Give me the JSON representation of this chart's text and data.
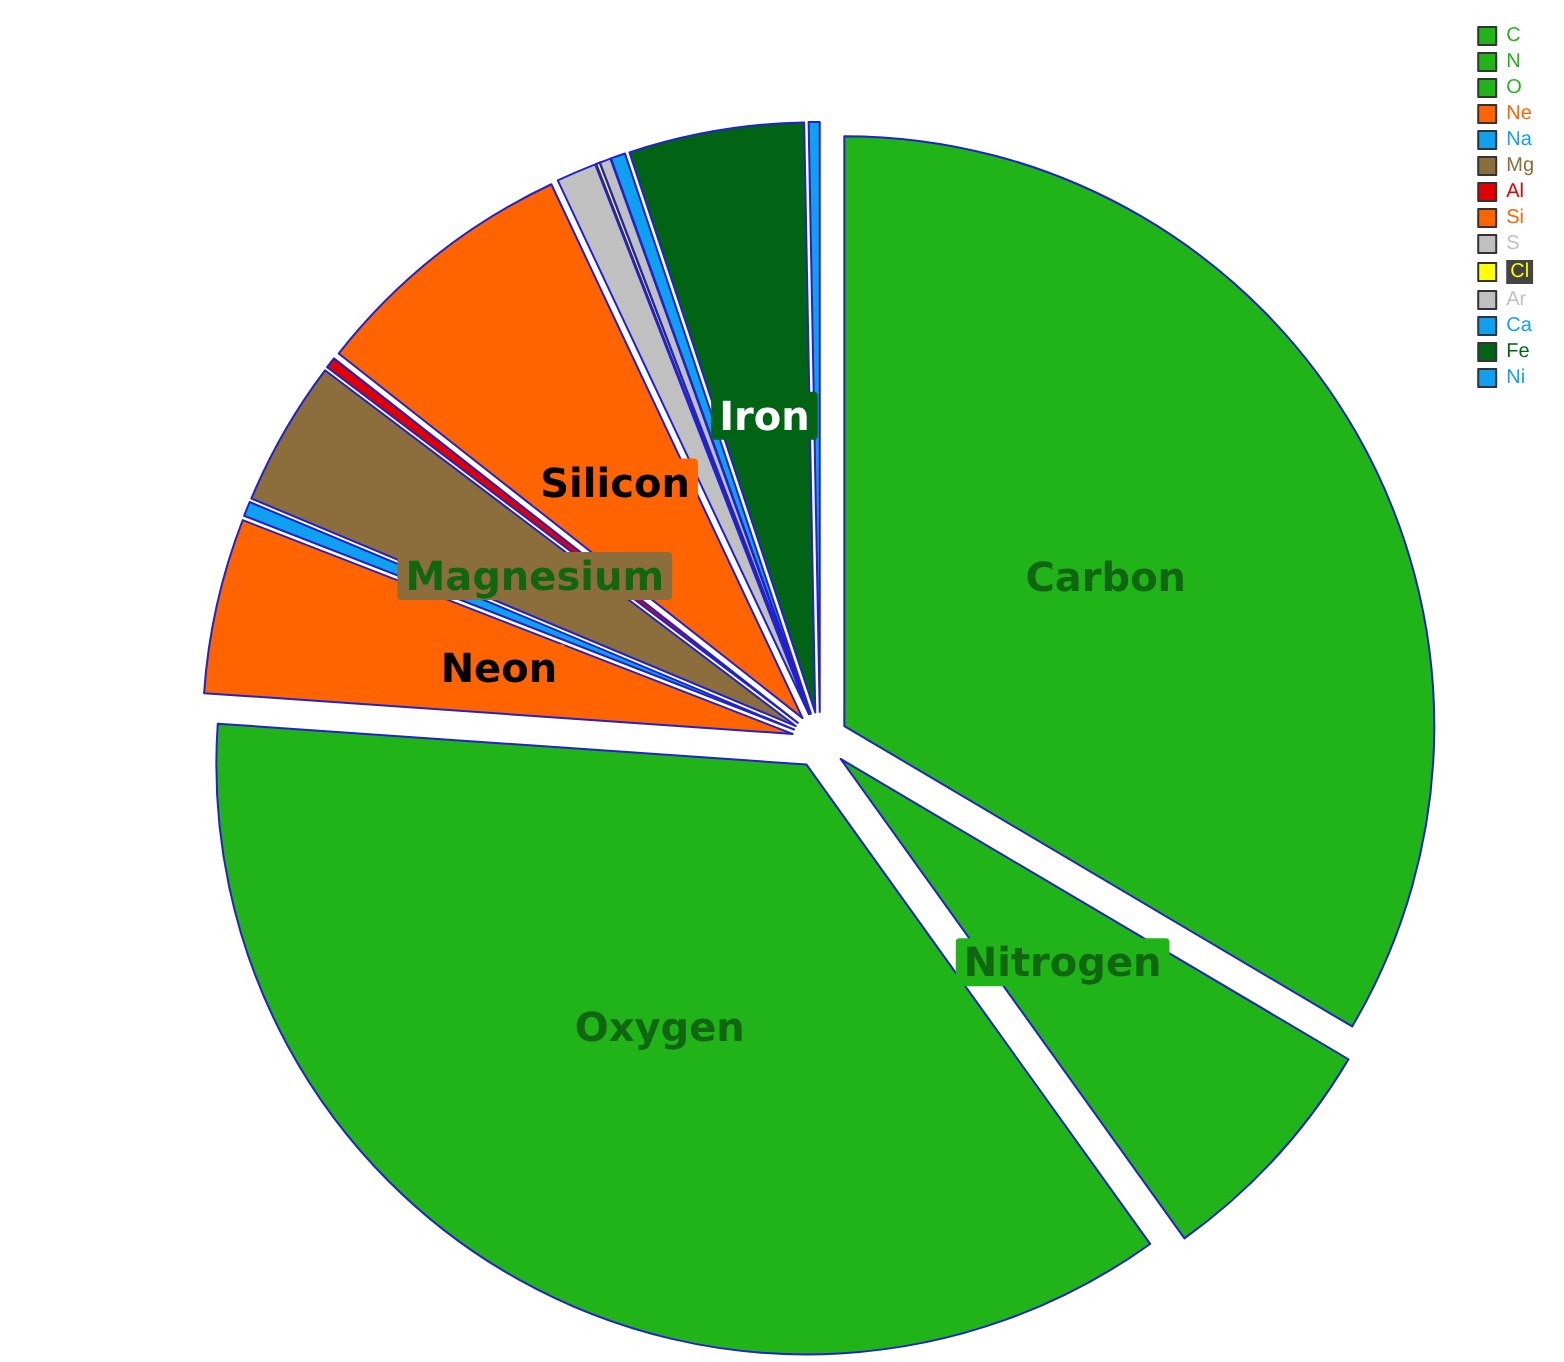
{
  "chart_data": {
    "type": "pie",
    "categories": [
      "C",
      "N",
      "O",
      "Ne",
      "Na",
      "Mg",
      "Al",
      "Si",
      "S",
      "Cl",
      "Ar",
      "Ca",
      "Fe",
      "Ni"
    ],
    "values": [
      33.5,
      6.6,
      36,
      4.8,
      0.4,
      4,
      0.3,
      7.4,
      1.1,
      0.1,
      0.3,
      0.4,
      4.8,
      0.3
    ],
    "colors": [
      "#20b418",
      "#20b418",
      "#20b418",
      "#ff6400",
      "#10a0f0",
      "#8c6e3c",
      "#e00000",
      "#ff6400",
      "#c0c0c0",
      "#ffff00",
      "#c0c0c0",
      "#10a0f0",
      "#006414",
      "#10a0f0"
    ],
    "value_labels": [
      "Carbon",
      "Nitrogen",
      "Oxygen",
      "Neon",
      null,
      "Magnesium",
      null,
      "Silicon",
      null,
      null,
      null,
      null,
      "Iron",
      null
    ],
    "legend": "top right"
  }
}
